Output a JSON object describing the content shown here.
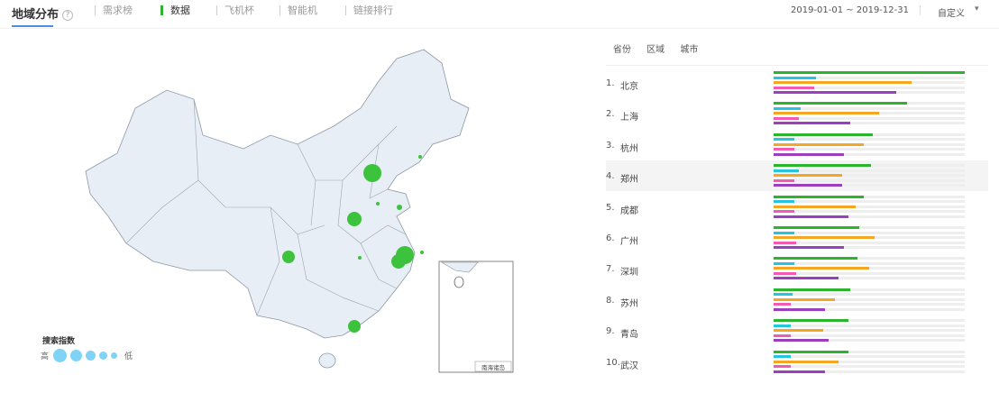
{
  "header": {
    "title": "地域分布",
    "help_icon": "question-circle-icon",
    "tabs": [
      {
        "label": "需求榜",
        "active": false
      },
      {
        "label": "数据",
        "active": true
      },
      {
        "label": "飞机杯",
        "active": false
      },
      {
        "label": "智能机",
        "active": false
      },
      {
        "label": "链接排行",
        "active": false
      }
    ],
    "date_range": "2019-01-01 ~ 2019-12-31",
    "range_select": "自定义"
  },
  "subtabs": [
    "省份",
    "区域",
    "城市"
  ],
  "series_colors": [
    "#2cb52c",
    "#27c4e0",
    "#f5a623",
    "#f25ab4",
    "#9b3fbf"
  ],
  "ranking": [
    {
      "rank": "1.",
      "city": "北京",
      "values": [
        1.0,
        0.22,
        0.72,
        0.21,
        0.64
      ]
    },
    {
      "rank": "2.",
      "city": "上海",
      "values": [
        0.7,
        0.14,
        0.55,
        0.13,
        0.4
      ]
    },
    {
      "rank": "3.",
      "city": "杭州",
      "values": [
        0.52,
        0.11,
        0.47,
        0.11,
        0.37
      ]
    },
    {
      "rank": "4.",
      "city": "郑州",
      "values": [
        0.51,
        0.13,
        0.36,
        0.11,
        0.36
      ],
      "highlighted": true
    },
    {
      "rank": "5.",
      "city": "成都",
      "values": [
        0.47,
        0.11,
        0.43,
        0.11,
        0.39
      ]
    },
    {
      "rank": "6.",
      "city": "广州",
      "values": [
        0.45,
        0.11,
        0.53,
        0.12,
        0.37
      ]
    },
    {
      "rank": "7.",
      "city": "深圳",
      "values": [
        0.44,
        0.11,
        0.5,
        0.12,
        0.34
      ]
    },
    {
      "rank": "8.",
      "city": "苏州",
      "values": [
        0.4,
        0.1,
        0.32,
        0.09,
        0.27
      ]
    },
    {
      "rank": "9.",
      "city": "青岛",
      "values": [
        0.39,
        0.09,
        0.26,
        0.09,
        0.29
      ]
    },
    {
      "rank": "10.",
      "city": "武汉",
      "values": [
        0.39,
        0.09,
        0.34,
        0.09,
        0.27
      ]
    }
  ],
  "map": {
    "inset_label": "南海诸岛",
    "bubble_color": "#3cc23c",
    "fill_color": "#e8eef5",
    "legend": {
      "title": "搜索指数",
      "high": "高",
      "low": "低",
      "color": "#7fd3f5"
    }
  }
}
